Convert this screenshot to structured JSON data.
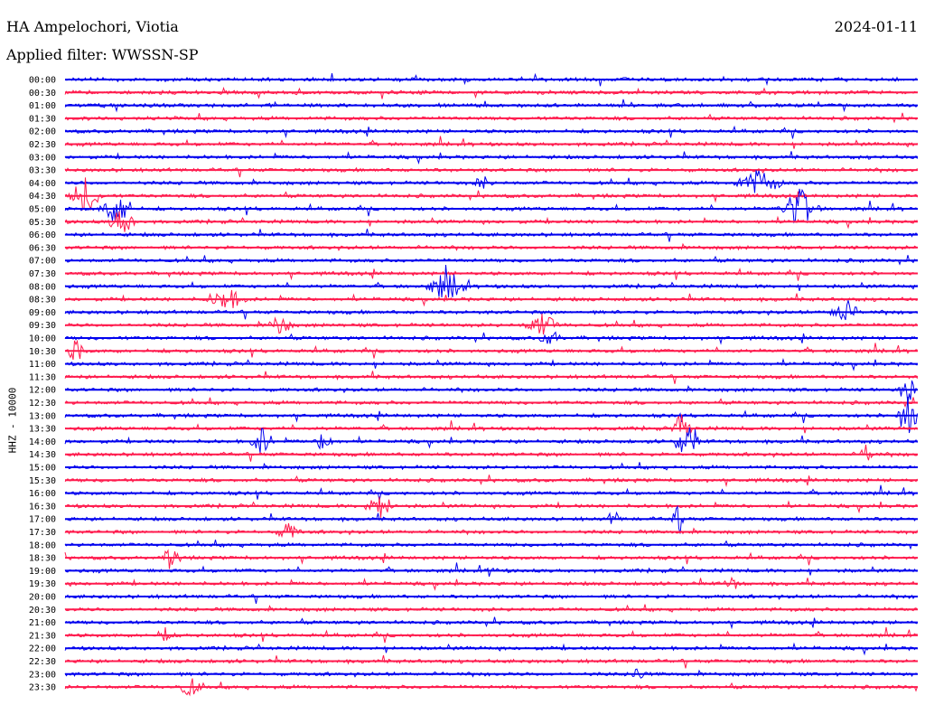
{
  "header": {
    "station": "HA Ampelochori, Viotia",
    "date": "2024-01-11",
    "filter": "Applied filter: WWSSN-SP"
  },
  "chart_data": {
    "type": "line",
    "ylabel": "HHZ - 10000",
    "colors": [
      "#0000ee",
      "#ff1a4d"
    ],
    "rows": [
      "00:00",
      "00:30",
      "01:00",
      "01:30",
      "02:00",
      "02:30",
      "03:00",
      "03:30",
      "04:00",
      "04:30",
      "05:00",
      "05:30",
      "06:00",
      "06:30",
      "07:00",
      "07:30",
      "08:00",
      "08:30",
      "09:00",
      "09:30",
      "10:00",
      "10:30",
      "11:00",
      "11:30",
      "12:00",
      "12:30",
      "13:00",
      "13:30",
      "14:00",
      "14:30",
      "15:00",
      "15:30",
      "16:00",
      "16:30",
      "17:00",
      "17:30",
      "18:00",
      "18:30",
      "19:00",
      "19:30",
      "20:00",
      "20:30",
      "21:00",
      "21:30",
      "22:00",
      "22:30",
      "23:00",
      "23:30"
    ]
  }
}
